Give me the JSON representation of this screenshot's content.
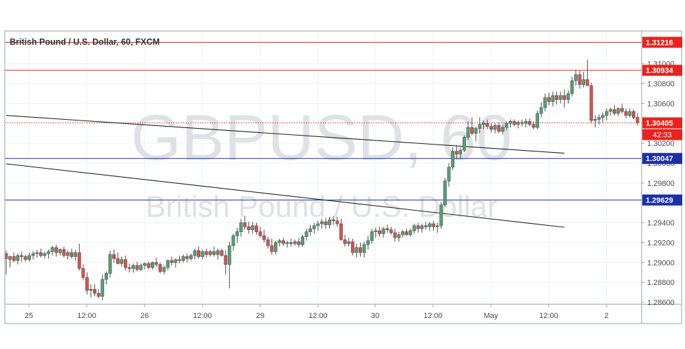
{
  "chart_title": "British Pound / U.S. Dollar, 60, FXCM",
  "watermark": {
    "symbol": "GBPUSD, 60",
    "name": "British Pound / U.S. Dollar"
  },
  "colors": {
    "up": "#53a374",
    "down": "#df4f4f",
    "wick": "#4a4a4a",
    "resistance": "#e8231f",
    "support": "#1b2fa8",
    "trendline": "#222222",
    "grid": "#eef0f3",
    "axis_text": "#4a4a4a",
    "watermark": "#dfe1e5"
  },
  "chart_data": {
    "type": "candlestick",
    "title": "British Pound / U.S. Dollar, 60, FXCM",
    "ylim": [
      1.2858,
      1.3133
    ],
    "y_ticks": [
      "1.31000",
      "1.30800",
      "1.30600",
      "1.30200",
      "1.30000",
      "1.29800",
      "1.29400",
      "1.29200",
      "1.29000",
      "1.28800",
      "1.28600"
    ],
    "x_ticks": [
      "25",
      "12:00",
      "26",
      "12:00",
      "29",
      "12:00",
      "30",
      "12:00",
      "May",
      "12:00",
      "2"
    ],
    "price_labels": [
      {
        "value": "1.31216",
        "kind": "resistance"
      },
      {
        "value": "1.30934",
        "kind": "resistance"
      },
      {
        "value": "1.30405",
        "kind": "last"
      },
      {
        "value": "1.30047",
        "kind": "support"
      },
      {
        "value": "1.29629",
        "kind": "support"
      }
    ],
    "countdown": "42:33",
    "horizontal_levels": [
      {
        "price": 1.31216,
        "color": "resistance",
        "style": "solid"
      },
      {
        "price": 1.30934,
        "color": "resistance",
        "style": "solid"
      },
      {
        "price": 1.30405,
        "color": "resistance",
        "style": "dotted"
      },
      {
        "price": 1.30047,
        "color": "support",
        "style": "solid"
      },
      {
        "price": 1.29629,
        "color": "support",
        "style": "solid"
      }
    ],
    "trendlines": [
      {
        "from": {
          "bar": 0,
          "price": 1.3048
        },
        "to": {
          "bar": 145,
          "price": 1.301
        }
      },
      {
        "from": {
          "bar": 0,
          "price": 1.29993
        },
        "to": {
          "bar": 145,
          "price": 1.29355
        }
      }
    ],
    "candles": [
      [
        1.2909,
        1.2912,
        1.2888,
        1.2904
      ],
      [
        1.2903,
        1.2907,
        1.2895,
        1.2906
      ],
      [
        1.2906,
        1.291,
        1.29,
        1.2902
      ],
      [
        1.2902,
        1.2909,
        1.2898,
        1.2907
      ],
      [
        1.2907,
        1.2911,
        1.2901,
        1.2906
      ],
      [
        1.2906,
        1.2908,
        1.2901,
        1.2903
      ],
      [
        1.2903,
        1.291,
        1.2901,
        1.2907
      ],
      [
        1.2907,
        1.2912,
        1.2903,
        1.2909
      ],
      [
        1.2909,
        1.2913,
        1.2905,
        1.291
      ],
      [
        1.291,
        1.2914,
        1.2905,
        1.2907
      ],
      [
        1.2907,
        1.2911,
        1.2904,
        1.2909
      ],
      [
        1.2909,
        1.2913,
        1.2904,
        1.2911
      ],
      [
        1.2911,
        1.2917,
        1.2907,
        1.2915
      ],
      [
        1.2915,
        1.2918,
        1.2906,
        1.291
      ],
      [
        1.291,
        1.2914,
        1.2907,
        1.2913
      ],
      [
        1.2913,
        1.2916,
        1.2905,
        1.2907
      ],
      [
        1.2907,
        1.2912,
        1.2903,
        1.291
      ],
      [
        1.291,
        1.2914,
        1.2904,
        1.2906
      ],
      [
        1.2906,
        1.2913,
        1.2902,
        1.291
      ],
      [
        1.291,
        1.2919,
        1.2892,
        1.2894
      ],
      [
        1.2894,
        1.2898,
        1.2882,
        1.2885
      ],
      [
        1.2885,
        1.289,
        1.2868,
        1.2872
      ],
      [
        1.2872,
        1.2878,
        1.2865,
        1.2873
      ],
      [
        1.2873,
        1.2878,
        1.2866,
        1.2869
      ],
      [
        1.2869,
        1.2873,
        1.2864,
        1.2866
      ],
      [
        1.2866,
        1.2888,
        1.2862,
        1.2883
      ],
      [
        1.2883,
        1.2891,
        1.2878,
        1.2889
      ],
      [
        1.2889,
        1.2912,
        1.2885,
        1.2908
      ],
      [
        1.2908,
        1.2913,
        1.29,
        1.2904
      ],
      [
        1.2904,
        1.291,
        1.2898,
        1.2899
      ],
      [
        1.2899,
        1.2906,
        1.2896,
        1.2903
      ],
      [
        1.2903,
        1.2907,
        1.2892,
        1.2895
      ],
      [
        1.2895,
        1.2899,
        1.289,
        1.2894
      ],
      [
        1.2894,
        1.2899,
        1.289,
        1.2897
      ],
      [
        1.2897,
        1.2901,
        1.2891,
        1.2893
      ],
      [
        1.2893,
        1.2899,
        1.2891,
        1.2897
      ],
      [
        1.2897,
        1.29,
        1.2893,
        1.2899
      ],
      [
        1.2899,
        1.2901,
        1.2893,
        1.2895
      ],
      [
        1.2895,
        1.2901,
        1.2893,
        1.29
      ],
      [
        1.29,
        1.2905,
        1.2896,
        1.2898
      ],
      [
        1.2898,
        1.29,
        1.2889,
        1.2891
      ],
      [
        1.2891,
        1.2897,
        1.2888,
        1.2895
      ],
      [
        1.2895,
        1.2903,
        1.2892,
        1.2902
      ],
      [
        1.2902,
        1.2906,
        1.2897,
        1.29
      ],
      [
        1.29,
        1.2904,
        1.2895,
        1.2903
      ],
      [
        1.2903,
        1.2907,
        1.2899,
        1.2902
      ],
      [
        1.2902,
        1.2908,
        1.29,
        1.2906
      ],
      [
        1.2906,
        1.2909,
        1.29,
        1.2904
      ],
      [
        1.2904,
        1.2909,
        1.2902,
        1.2907
      ],
      [
        1.2907,
        1.2914,
        1.2903,
        1.2912
      ],
      [
        1.2912,
        1.2916,
        1.2904,
        1.2906
      ],
      [
        1.2906,
        1.2913,
        1.2903,
        1.2911
      ],
      [
        1.2911,
        1.2914,
        1.2905,
        1.2908
      ],
      [
        1.2908,
        1.2913,
        1.2906,
        1.2911
      ],
      [
        1.2911,
        1.2916,
        1.2906,
        1.2908
      ],
      [
        1.2908,
        1.2914,
        1.2903,
        1.2912
      ],
      [
        1.2912,
        1.2914,
        1.2906,
        1.2907
      ],
      [
        1.2907,
        1.2912,
        1.2888,
        1.2898
      ],
      [
        1.2898,
        1.2921,
        1.2874,
        1.2917
      ],
      [
        1.2917,
        1.2929,
        1.2912,
        1.2927
      ],
      [
        1.2927,
        1.2935,
        1.292,
        1.2931
      ],
      [
        1.2931,
        1.2944,
        1.2926,
        1.294
      ],
      [
        1.294,
        1.2947,
        1.2933,
        1.2936
      ],
      [
        1.2936,
        1.2941,
        1.2929,
        1.2933
      ],
      [
        1.2933,
        1.2941,
        1.2929,
        1.2937
      ],
      [
        1.2937,
        1.294,
        1.2928,
        1.2931
      ],
      [
        1.2931,
        1.2936,
        1.2925,
        1.2927
      ],
      [
        1.2927,
        1.2933,
        1.292,
        1.2923
      ],
      [
        1.2923,
        1.2926,
        1.2914,
        1.2917
      ],
      [
        1.2917,
        1.2924,
        1.2908,
        1.2911
      ],
      [
        1.2911,
        1.2922,
        1.2908,
        1.292
      ],
      [
        1.292,
        1.2924,
        1.2916,
        1.2922
      ],
      [
        1.2922,
        1.2925,
        1.2917,
        1.2919
      ],
      [
        1.2919,
        1.2922,
        1.2915,
        1.292
      ],
      [
        1.292,
        1.2924,
        1.2916,
        1.2919
      ],
      [
        1.2919,
        1.2923,
        1.2917,
        1.2921
      ],
      [
        1.2921,
        1.2925,
        1.2915,
        1.2918
      ],
      [
        1.2918,
        1.2928,
        1.2916,
        1.2926
      ],
      [
        1.2926,
        1.2934,
        1.2922,
        1.2931
      ],
      [
        1.2931,
        1.2938,
        1.2927,
        1.2934
      ],
      [
        1.2934,
        1.294,
        1.2929,
        1.2937
      ],
      [
        1.2937,
        1.2942,
        1.2932,
        1.2939
      ],
      [
        1.2939,
        1.2944,
        1.2934,
        1.2941
      ],
      [
        1.2941,
        1.2945,
        1.2934,
        1.2938
      ],
      [
        1.2938,
        1.2946,
        1.2934,
        1.2943
      ],
      [
        1.2943,
        1.2947,
        1.2938,
        1.2942
      ],
      [
        1.2942,
        1.2946,
        1.2936,
        1.2939
      ],
      [
        1.2939,
        1.2944,
        1.2922,
        1.2923
      ],
      [
        1.2923,
        1.2928,
        1.2916,
        1.2919
      ],
      [
        1.2919,
        1.2925,
        1.2916,
        1.2921
      ],
      [
        1.2921,
        1.2924,
        1.2907,
        1.291
      ],
      [
        1.291,
        1.2919,
        1.2905,
        1.2915
      ],
      [
        1.2915,
        1.292,
        1.2906,
        1.291
      ],
      [
        1.291,
        1.2921,
        1.2905,
        1.2918
      ],
      [
        1.2918,
        1.2927,
        1.2913,
        1.2922
      ],
      [
        1.2922,
        1.2934,
        1.2919,
        1.2931
      ],
      [
        1.2931,
        1.2935,
        1.2925,
        1.2932
      ],
      [
        1.2932,
        1.2936,
        1.2926,
        1.2929
      ],
      [
        1.2929,
        1.2936,
        1.2925,
        1.2934
      ],
      [
        1.2934,
        1.2938,
        1.293,
        1.2933
      ],
      [
        1.2933,
        1.2936,
        1.2928,
        1.293
      ],
      [
        1.293,
        1.2934,
        1.2921,
        1.2925
      ],
      [
        1.2925,
        1.2931,
        1.2921,
        1.2928
      ],
      [
        1.2928,
        1.2933,
        1.2925,
        1.2931
      ],
      [
        1.2931,
        1.2934,
        1.2927,
        1.2928
      ],
      [
        1.2928,
        1.2934,
        1.2926,
        1.2932
      ],
      [
        1.2932,
        1.2939,
        1.2929,
        1.2937
      ],
      [
        1.2937,
        1.294,
        1.293,
        1.2934
      ],
      [
        1.2934,
        1.2939,
        1.293,
        1.2937
      ],
      [
        1.2937,
        1.2941,
        1.2933,
        1.2936
      ],
      [
        1.2936,
        1.2941,
        1.2932,
        1.2939
      ],
      [
        1.2939,
        1.2942,
        1.2932,
        1.2936
      ],
      [
        1.2936,
        1.294,
        1.293,
        1.2937
      ],
      [
        1.2937,
        1.2961,
        1.2934,
        1.2958
      ],
      [
        1.2958,
        1.2985,
        1.2956,
        1.2982
      ],
      [
        1.2982,
        1.3,
        1.2976,
        1.2996
      ],
      [
        1.2996,
        1.3016,
        1.2993,
        1.3012
      ],
      [
        1.3012,
        1.3017,
        1.3004,
        1.3009
      ],
      [
        1.3009,
        1.3016,
        1.3004,
        1.3013
      ],
      [
        1.3013,
        1.3028,
        1.3011,
        1.3026
      ],
      [
        1.3026,
        1.3042,
        1.3023,
        1.3036
      ],
      [
        1.3036,
        1.3046,
        1.3028,
        1.303
      ],
      [
        1.303,
        1.3037,
        1.3022,
        1.3035
      ],
      [
        1.3035,
        1.3046,
        1.303,
        1.3039
      ],
      [
        1.3039,
        1.3043,
        1.3034,
        1.304
      ],
      [
        1.304,
        1.3044,
        1.3034,
        1.3037
      ],
      [
        1.3037,
        1.304,
        1.3031,
        1.3034
      ],
      [
        1.3034,
        1.304,
        1.303,
        1.3038
      ],
      [
        1.3038,
        1.3041,
        1.303,
        1.3032
      ],
      [
        1.3032,
        1.3039,
        1.3029,
        1.3036
      ],
      [
        1.3036,
        1.3042,
        1.3033,
        1.304
      ],
      [
        1.304,
        1.3044,
        1.3036,
        1.3042
      ],
      [
        1.3042,
        1.3044,
        1.3037,
        1.3039
      ],
      [
        1.3039,
        1.3043,
        1.3035,
        1.3041
      ],
      [
        1.3041,
        1.3044,
        1.3037,
        1.304
      ],
      [
        1.304,
        1.3045,
        1.3036,
        1.3042
      ],
      [
        1.3042,
        1.3045,
        1.3037,
        1.3039
      ],
      [
        1.3039,
        1.3042,
        1.3034,
        1.3036
      ],
      [
        1.3036,
        1.3053,
        1.3034,
        1.305
      ],
      [
        1.305,
        1.3061,
        1.3046,
        1.3056
      ],
      [
        1.3056,
        1.307,
        1.3052,
        1.3066
      ],
      [
        1.3066,
        1.3071,
        1.3058,
        1.3062
      ],
      [
        1.3062,
        1.3072,
        1.3057,
        1.3068
      ],
      [
        1.3068,
        1.3072,
        1.3059,
        1.3064
      ],
      [
        1.3064,
        1.3072,
        1.306,
        1.3068
      ],
      [
        1.3068,
        1.3074,
        1.3056,
        1.3064
      ],
      [
        1.3064,
        1.3073,
        1.306,
        1.307
      ],
      [
        1.307,
        1.3087,
        1.3067,
        1.3083
      ],
      [
        1.3083,
        1.3094,
        1.3078,
        1.3089
      ],
      [
        1.3089,
        1.3093,
        1.3075,
        1.3079
      ],
      [
        1.3079,
        1.3092,
        1.3076,
        1.3084
      ],
      [
        1.3084,
        1.3104,
        1.3078,
        1.3078
      ],
      [
        1.3078,
        1.3081,
        1.304,
        1.3043
      ],
      [
        1.3043,
        1.3048,
        1.3036,
        1.3044
      ],
      [
        1.3044,
        1.3049,
        1.3039,
        1.3046
      ],
      [
        1.3046,
        1.3051,
        1.3041,
        1.3048
      ],
      [
        1.3048,
        1.3055,
        1.3043,
        1.3052
      ],
      [
        1.3052,
        1.3056,
        1.3048,
        1.3054
      ],
      [
        1.3054,
        1.3058,
        1.3048,
        1.305
      ],
      [
        1.305,
        1.3056,
        1.3047,
        1.3055
      ],
      [
        1.3055,
        1.306,
        1.305,
        1.3052
      ],
      [
        1.3052,
        1.3055,
        1.3045,
        1.3048
      ],
      [
        1.3048,
        1.3055,
        1.3046,
        1.3052
      ],
      [
        1.3052,
        1.3054,
        1.3044,
        1.3046
      ],
      [
        1.3046,
        1.305,
        1.3038,
        1.3041
      ]
    ]
  }
}
